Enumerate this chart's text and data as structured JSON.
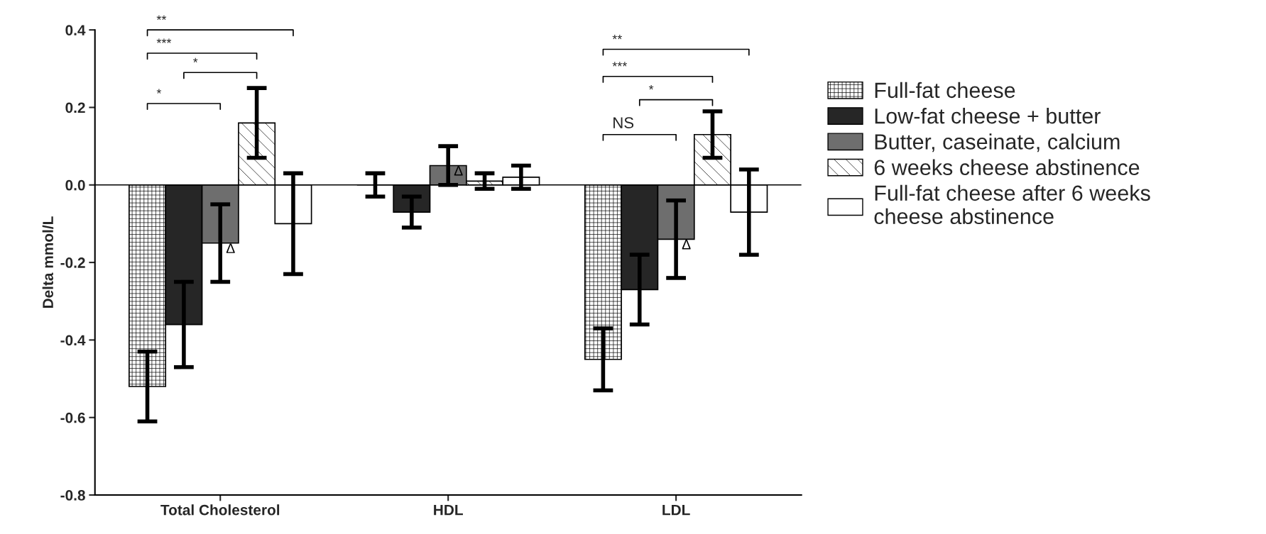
{
  "chart_data": {
    "type": "bar",
    "ylabel": "Delta mmol/L",
    "categories": [
      "Total Cholesterol",
      "HDL",
      "LDL"
    ],
    "series": [
      {
        "name": "Full-fat cheese",
        "color": "#000000",
        "values": [
          -0.52,
          0.0,
          -0.45
        ],
        "errors": [
          [
            -0.61,
            -0.43
          ],
          [
            -0.03,
            0.03
          ],
          [
            -0.53,
            -0.37
          ]
        ]
      },
      {
        "name": "Low-fat cheese + butter",
        "color": "#262626",
        "values": [
          -0.36,
          -0.07,
          -0.27
        ],
        "errors": [
          [
            -0.47,
            -0.25
          ],
          [
            -0.11,
            -0.03
          ],
          [
            -0.36,
            -0.18
          ]
        ]
      },
      {
        "name": "Butter, caseinate, calcium",
        "color": "#6e6e6e",
        "values": [
          -0.15,
          0.05,
          -0.14
        ],
        "errors": [
          [
            -0.25,
            -0.05
          ],
          [
            0.0,
            0.1
          ],
          [
            -0.24,
            -0.04
          ]
        ]
      },
      {
        "name": "6 weeks cheese abstinence",
        "color": "#000000",
        "values": [
          0.16,
          0.01,
          0.13
        ],
        "errors": [
          [
            0.07,
            0.25
          ],
          [
            -0.01,
            0.03
          ],
          [
            0.07,
            0.19
          ]
        ]
      },
      {
        "name": "Full-fat cheese after 6 weeks cheese abstinence",
        "color": "#ffffff",
        "values": [
          -0.1,
          0.02,
          -0.07
        ],
        "errors": [
          [
            -0.23,
            0.03
          ],
          [
            -0.01,
            0.05
          ],
          [
            -0.18,
            0.04
          ]
        ]
      }
    ],
    "ylim": [
      -0.8,
      0.4
    ],
    "yticks": [
      {
        "value": -0.8,
        "label": "-0.8"
      },
      {
        "value": -0.6,
        "label": "-0.6"
      },
      {
        "value": -0.4,
        "label": "-0.4"
      },
      {
        "value": -0.2,
        "label": "-0.2"
      },
      {
        "value": 0.0,
        "label": "0.0"
      },
      {
        "value": 0.2,
        "label": "0.2"
      },
      {
        "value": 0.4,
        "label": "0.4"
      }
    ],
    "ref_lines": [
      {
        "axis": "y",
        "value": 0
      }
    ],
    "legend": "right",
    "annotations": [
      "**",
      "***",
      "*",
      "*",
      "**",
      "***",
      "*",
      "NS",
      {
        "text": "Δ",
        "x": "Total Cholesterol",
        "y": -0.15
      },
      {
        "text": "Δ",
        "x": "HDL",
        "y": 0.05
      },
      {
        "text": "Δ",
        "x": "LDL",
        "y": -0.14
      }
    ]
  }
}
